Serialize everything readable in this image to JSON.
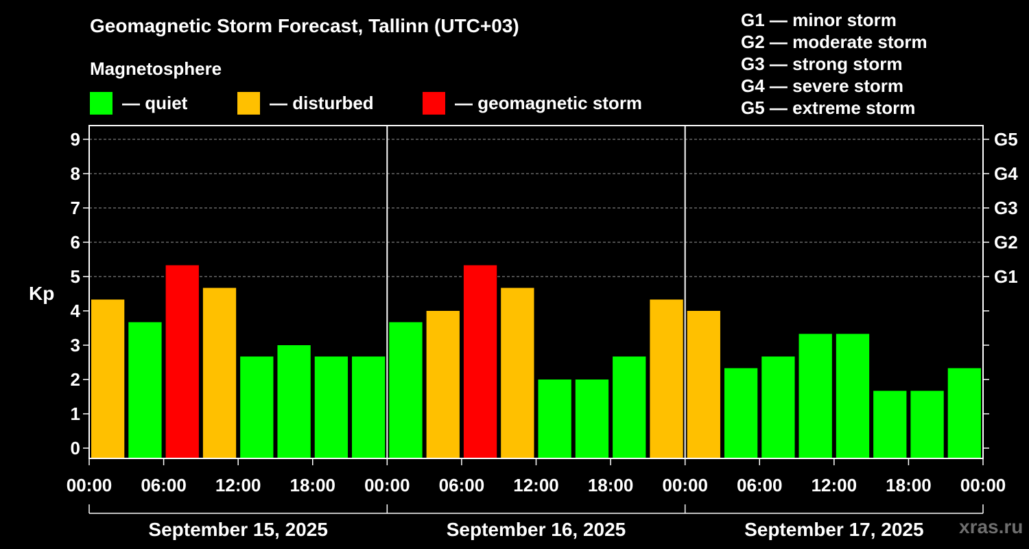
{
  "chart_data": {
    "type": "bar",
    "title": "Geomagnetic Storm Forecast, Tallinn (UTC+03)",
    "subtitle": "Magnetosphere",
    "ylabel": "Kp",
    "ylim": [
      -0.3,
      9.4
    ],
    "yticks": [
      "0",
      "1",
      "2",
      "3",
      "4",
      "5",
      "6",
      "7",
      "8",
      "9"
    ],
    "right_axis_labels": [
      {
        "kp": 5,
        "label": "G1"
      },
      {
        "kp": 6,
        "label": "G2"
      },
      {
        "kp": 7,
        "label": "G3"
      },
      {
        "kp": 8,
        "label": "G4"
      },
      {
        "kp": 9,
        "label": "G5"
      }
    ],
    "xtick_labels": [
      "00:00",
      "06:00",
      "12:00",
      "18:00",
      "00:00",
      "06:00",
      "12:00",
      "18:00",
      "00:00",
      "06:00",
      "12:00",
      "18:00",
      "00:00"
    ],
    "days": [
      "September 15, 2025",
      "September 16, 2025",
      "September 17, 2025"
    ],
    "bar_hours": [
      "00:00-03:00",
      "03:00-06:00",
      "06:00-09:00",
      "09:00-12:00",
      "12:00-15:00",
      "15:00-18:00",
      "18:00-21:00",
      "21:00-24:00"
    ],
    "values": [
      [
        4.33,
        3.67,
        5.33,
        4.67,
        2.67,
        3.0,
        2.67,
        2.67
      ],
      [
        3.67,
        4.0,
        5.33,
        4.67,
        2.0,
        2.0,
        2.67,
        4.33
      ],
      [
        4.0,
        2.33,
        2.67,
        3.33,
        3.33,
        1.67,
        1.67,
        2.33
      ]
    ],
    "status": [
      [
        "disturbed",
        "quiet",
        "storm",
        "disturbed",
        "quiet",
        "quiet",
        "quiet",
        "quiet"
      ],
      [
        "quiet",
        "disturbed",
        "storm",
        "disturbed",
        "quiet",
        "quiet",
        "quiet",
        "disturbed"
      ],
      [
        "disturbed",
        "quiet",
        "quiet",
        "quiet",
        "quiet",
        "quiet",
        "quiet",
        "quiet"
      ]
    ],
    "colors": {
      "quiet": "#00ff00",
      "disturbed": "#ffc000",
      "storm": "#ff0000"
    },
    "grid": true
  },
  "legend": {
    "quiet": "— quiet",
    "disturbed": "— disturbed",
    "storm": "— geomagnetic storm"
  },
  "g_scale": [
    "G1 — minor storm",
    "G2 — moderate storm",
    "G3 — strong storm",
    "G4 — severe storm",
    "G5 — extreme storm"
  ],
  "watermark": "xras.ru"
}
